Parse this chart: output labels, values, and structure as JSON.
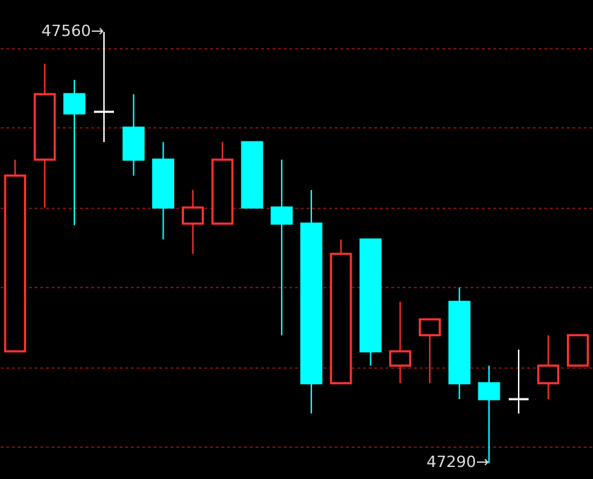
{
  "chart_data": {
    "type": "candlestick",
    "categories": [
      null,
      null,
      null,
      null,
      null,
      null,
      null,
      null,
      null,
      null,
      null,
      null,
      null,
      null,
      null,
      null,
      null,
      null,
      null,
      null
    ],
    "ohlc": [
      [
        47360,
        47480,
        47360,
        47470
      ],
      [
        47480,
        47540,
        47450,
        47521
      ],
      [
        47521,
        47530,
        47439,
        47509
      ],
      [
        47510,
        47560,
        47491,
        47510
      ],
      [
        47500,
        47521,
        47470,
        47480
      ],
      [
        47480,
        47491,
        47430,
        47450
      ],
      [
        47440,
        47461,
        47421,
        47450
      ],
      [
        47440,
        47491,
        47440,
        47480
      ],
      [
        47491,
        47491,
        47450,
        47450
      ],
      [
        47450,
        47480,
        47370,
        47440
      ],
      [
        47440,
        47461,
        47321,
        47340
      ],
      [
        47340,
        47430,
        47340,
        47421
      ],
      [
        47430,
        47430,
        47351,
        47360
      ],
      [
        47351,
        47391,
        47340,
        47360
      ],
      [
        47370,
        47380,
        47340,
        47380
      ],
      [
        47391,
        47400,
        47330,
        47340
      ],
      [
        47340,
        47351,
        47290,
        47330
      ],
      [
        47330,
        47361,
        47321,
        47330
      ],
      [
        47340,
        47370,
        47330,
        47351
      ],
      [
        47351,
        47370,
        47351,
        47370
      ]
    ],
    "colors": [
      "#ff3232",
      "#ff3232",
      "#00ffff",
      "#ffffff",
      "#00ffff",
      "#00ffff",
      "#ff3232",
      "#ff3232",
      "#00ffff",
      "#00ffff",
      "#00ffff",
      "#ff3232",
      "#00ffff",
      "#ff3232",
      "#ff3232",
      "#00ffff",
      "#00ffff",
      "#ffffff",
      "#ff3232",
      "#ff3232"
    ],
    "ylim": [
      47280,
      47580
    ],
    "yticks": [
      {
        "value": 47300,
        "label": null
      },
      {
        "value": 47350,
        "label": null
      },
      {
        "value": 47400,
        "label": null
      },
      {
        "value": 47450,
        "label": null
      },
      {
        "value": 47500,
        "label": null
      },
      {
        "value": 47550,
        "label": null
      }
    ],
    "grid": "y",
    "tick_labels": false,
    "annotations": [
      "47560→",
      "47290→"
    ]
  }
}
